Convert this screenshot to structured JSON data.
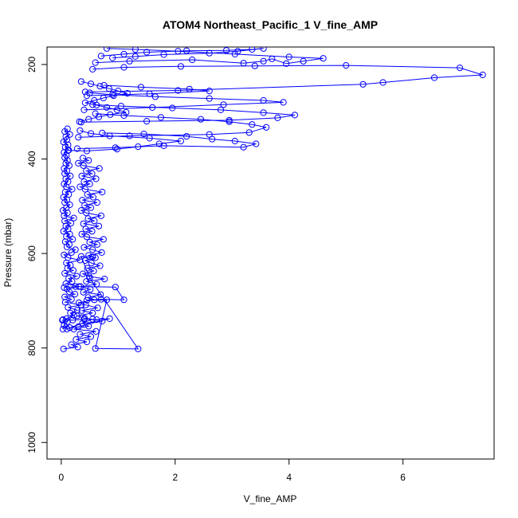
{
  "chart_data": {
    "type": "scatter",
    "title": "ATOM4 Northeast_Pacific_1 V_fine_AMP",
    "xlabel": "V_fine_AMP",
    "ylabel": "Pressure (mbar)",
    "xlim": [
      -0.25,
      7.6
    ],
    "ylim": [
      1035,
      163
    ],
    "y_axis_inverted": true,
    "x_ticks": [
      0,
      2,
      4,
      6
    ],
    "y_ticks": [
      200,
      400,
      600,
      800,
      1000
    ],
    "grid": false,
    "legend": "none",
    "style": "line-and-circle-markers",
    "color": "#0000ff",
    "series": [
      {
        "x": [
          0.03,
          0.05,
          0.11,
          0.09,
          0.22,
          0.16,
          0.28,
          0.12,
          0.35,
          0.07,
          0.18,
          0.06,
          0.24,
          0.14,
          0.1,
          0.31,
          0.08,
          0.19,
          0.13,
          0.27,
          0.06,
          0.21,
          0.11,
          0.16,
          0.09,
          0.33,
          0.12,
          0.05,
          0.18,
          0.25,
          0.1,
          0.14,
          0.07,
          0.2,
          0.09,
          0.15,
          0.04,
          0.12,
          0.08,
          0.17,
          0.06,
          0.22,
          0.05,
          0.11,
          0.03,
          0.09,
          0.15,
          0.06,
          0.1,
          0.04,
          0.13,
          0.07,
          0.19,
          0.09,
          0.05,
          0.12,
          0.08,
          0.16,
          0.06,
          0.1,
          0.05,
          0.14,
          0.08,
          0.11,
          0.06,
          0.09,
          0.05,
          0.13,
          0.07,
          0.12,
          0.04,
          0.1,
          0.08,
          0.15,
          0.06,
          0.11
        ],
        "y": [
          760,
          752,
          744,
          738,
          731,
          726,
          720,
          714,
          709,
          703,
          697,
          692,
          686,
          681,
          675,
          670,
          664,
          659,
          653,
          648,
          642,
          636,
          631,
          625,
          620,
          614,
          609,
          603,
          598,
          592,
          586,
          581,
          575,
          570,
          564,
          559,
          553,
          548,
          542,
          536,
          531,
          525,
          520,
          514,
          509,
          503,
          497,
          492,
          486,
          481,
          475,
          470,
          464,
          459,
          453,
          448,
          442,
          436,
          431,
          425,
          420,
          414,
          409,
          403,
          397,
          392,
          386,
          381,
          375,
          370,
          364,
          359,
          353,
          348,
          342,
          336
        ]
      },
      {
        "x": [
          0.04,
          0.29,
          0.18,
          0.45,
          0.26,
          0.52,
          0.33,
          0.61,
          0.22,
          0.48,
          0.37,
          0.72,
          0.41,
          0.28,
          0.55,
          0.36,
          0.64,
          0.43,
          0.31,
          0.58,
          0.47,
          0.69,
          0.39,
          0.51,
          0.34,
          0.62,
          0.44,
          0.76,
          0.49,
          0.38,
          0.57,
          0.46,
          0.68,
          0.53,
          0.42,
          0.6,
          0.48,
          0.71,
          0.55,
          0.4,
          0.63,
          0.5,
          0.74,
          0.45,
          0.36,
          0.54,
          0.43,
          0.66,
          0.39,
          0.58,
          0.47,
          0.7,
          0.44,
          0.35,
          0.52,
          0.41,
          0.63,
          0.37,
          0.56,
          0.46,
          0.72,
          0.42,
          0.33,
          0.5,
          0.4,
          0.61,
          0.36,
          0.54,
          0.44,
          0.67,
          0.39,
          0.3,
          0.48,
          0.38
        ],
        "y": [
          802,
          798,
          793,
          787,
          782,
          776,
          771,
          765,
          760,
          754,
          748,
          743,
          737,
          732,
          726,
          721,
          715,
          709,
          704,
          698,
          693,
          687,
          682,
          676,
          670,
          665,
          659,
          654,
          648,
          643,
          637,
          631,
          626,
          620,
          615,
          609,
          604,
          598,
          592,
          587,
          581,
          576,
          570,
          565,
          559,
          553,
          548,
          542,
          537,
          531,
          526,
          520,
          514,
          509,
          503,
          498,
          492,
          487,
          481,
          475,
          470,
          464,
          459,
          453,
          448,
          442,
          436,
          431,
          425,
          420,
          414,
          409,
          403,
          398
        ]
      },
      {
        "x": [
          0.05,
          0.25,
          0.95,
          1.1,
          0.7,
          0.45,
          0.8,
          0.6,
          1.35,
          0.5,
          0.35,
          0.55
        ],
        "y": [
          672,
          670,
          671,
          698,
          697,
          699,
          698,
          801,
          802,
          652,
          606,
          607
        ]
      },
      {
        "x": [
          0.12,
          0.45,
          0.98,
          1.35,
          1.72,
          2.1,
          1.55,
          0.85,
          0.52,
          0.33
        ],
        "y": [
          382,
          383,
          379,
          374,
          368,
          362,
          356,
          351,
          346,
          340
        ]
      },
      {
        "x": [
          0.28,
          0.95,
          1.8,
          3.2,
          3.42,
          3.05,
          2.65,
          2.2,
          1.45,
          0.72
        ],
        "y": [
          378,
          376,
          372,
          375,
          368,
          362,
          358,
          352,
          347,
          345
        ]
      },
      {
        "x": [
          0.3,
          1.2,
          2.6,
          3.3,
          3.6,
          3.35,
          2.95,
          2.45,
          1.75,
          1.1,
          0.6
        ],
        "y": [
          354,
          351,
          348,
          344,
          333,
          327,
          321,
          316,
          312,
          308,
          304
        ]
      },
      {
        "x": [
          0.35,
          1.5,
          2.95,
          3.8,
          4.1,
          3.55,
          2.8,
          1.95,
          1.05,
          0.55
        ],
        "y": [
          322,
          320,
          318,
          313,
          307,
          302,
          296,
          292,
          288,
          285
        ]
      },
      {
        "x": [
          0.4,
          1.6,
          2.85,
          3.9,
          3.55,
          2.6,
          1.65,
          0.9,
          0.5
        ],
        "y": [
          296,
          291,
          285,
          280,
          276,
          272,
          268,
          264,
          260
        ]
      },
      {
        "x": [
          0.45,
          1.55,
          2.6,
          2.25,
          1.4,
          0.75
        ],
        "y": [
          266,
          262,
          256,
          252,
          248,
          244
        ]
      },
      {
        "x": [
          0.42,
          2.05,
          5.3,
          5.65,
          6.55,
          7.4,
          7.0,
          5.0,
          3.4,
          2.1,
          1.1,
          0.55
        ],
        "y": [
          258,
          255,
          242,
          238,
          228,
          222,
          207,
          202,
          203,
          204,
          206,
          210
        ]
      },
      {
        "x": [
          0.6,
          1.2,
          2.3,
          3.2,
          3.55,
          3.7,
          3.95,
          4.25,
          4.6,
          4.0,
          3.05,
          2.05,
          1.3,
          0.8
        ],
        "y": [
          196,
          193,
          190,
          197,
          193,
          188,
          198,
          193,
          187,
          184,
          178,
          172,
          168,
          166
        ]
      },
      {
        "x": [
          0.7,
          1.1,
          1.5,
          2.2,
          2.9,
          3.35,
          3.55,
          3.1,
          2.6,
          1.8,
          1.3,
          0.9
        ],
        "y": [
          182,
          178,
          174,
          171,
          170,
          168,
          166,
          172,
          176,
          179,
          183,
          186
        ]
      },
      {
        "x": [
          0.35,
          0.52,
          0.68,
          0.84,
          1.0,
          1.16,
          0.92,
          0.74,
          0.58,
          0.42,
          0.62,
          0.8,
          0.98,
          1.14,
          0.86,
          0.66,
          0.48,
          0.32
        ],
        "y": [
          236,
          241,
          246,
          251,
          256,
          261,
          266,
          271,
          276,
          281,
          286,
          291,
          296,
          301,
          306,
          311,
          316,
          321
        ]
      },
      {
        "x": [
          0.03,
          0.2,
          0.4,
          0.62,
          0.85,
          0.3,
          0.15,
          0.02,
          0.1,
          0.55
        ],
        "y": [
          740,
          741,
          739,
          740,
          738,
          755,
          757,
          741,
          760,
          739
        ]
      }
    ]
  }
}
